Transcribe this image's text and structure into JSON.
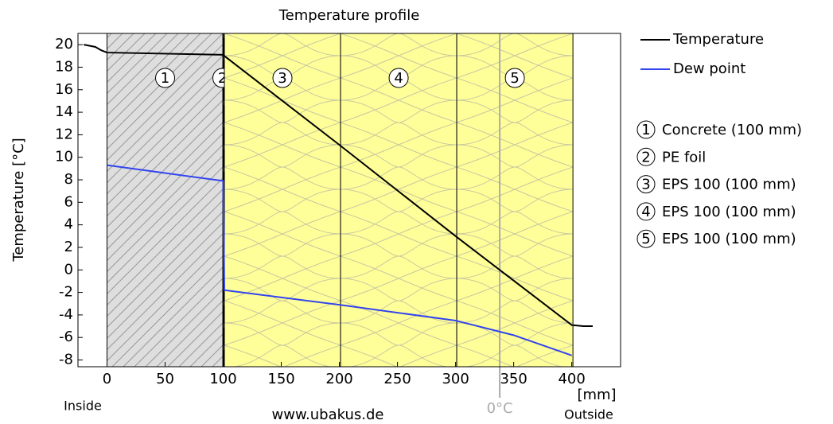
{
  "chart_data": {
    "type": "line",
    "title": "Temperature profile",
    "ylabel": "Temperature  [°C]",
    "xlabel": "[mm]",
    "inside_label": "Inside",
    "outside_label": "Outside",
    "source": "www.ubakus.de",
    "xlim": [
      -25,
      442
    ],
    "ylim": [
      -8.6,
      21
    ],
    "xticks": [
      0,
      50,
      100,
      150,
      200,
      250,
      300,
      350,
      400
    ],
    "yticks": [
      -8,
      -6,
      -4,
      -2,
      0,
      2,
      4,
      6,
      8,
      10,
      12,
      14,
      16,
      18,
      20
    ],
    "layers": [
      {
        "label": "1",
        "name": "Concrete (100 mm)",
        "start": 0,
        "end": 100,
        "pattern": "concrete"
      },
      {
        "label": "2",
        "name": "PE foil",
        "start": 100,
        "end": 101,
        "pattern": "foil"
      },
      {
        "label": "3",
        "name": "EPS 100 (100 mm)",
        "start": 101,
        "end": 201,
        "pattern": "eps"
      },
      {
        "label": "4",
        "name": "EPS 100 (100 mm)",
        "start": 201,
        "end": 301,
        "pattern": "eps"
      },
      {
        "label": "5",
        "name": "EPS 100 (100 mm)",
        "start": 301,
        "end": 401,
        "pattern": "eps"
      }
    ],
    "freezing_line": {
      "x": 338,
      "label": "0°C",
      "color": "#aaaaaa"
    },
    "series": [
      {
        "name": "Temperature",
        "color": "#000000",
        "x": [
          -20,
          -10,
          -5,
          0,
          100,
          101,
          200,
          300,
          400,
          410,
          418
        ],
        "values": [
          20,
          19.8,
          19.5,
          19.3,
          19.1,
          19.0,
          11.1,
          3.0,
          -4.9,
          -5.0,
          -5.0
        ]
      },
      {
        "name": "Dew point",
        "color": "#3344ee",
        "x": [
          0,
          100,
          101,
          200,
          300,
          350,
          400
        ],
        "values": [
          9.3,
          7.9,
          -1.8,
          -3.1,
          -4.5,
          -5.8,
          -7.6
        ]
      }
    ]
  }
}
